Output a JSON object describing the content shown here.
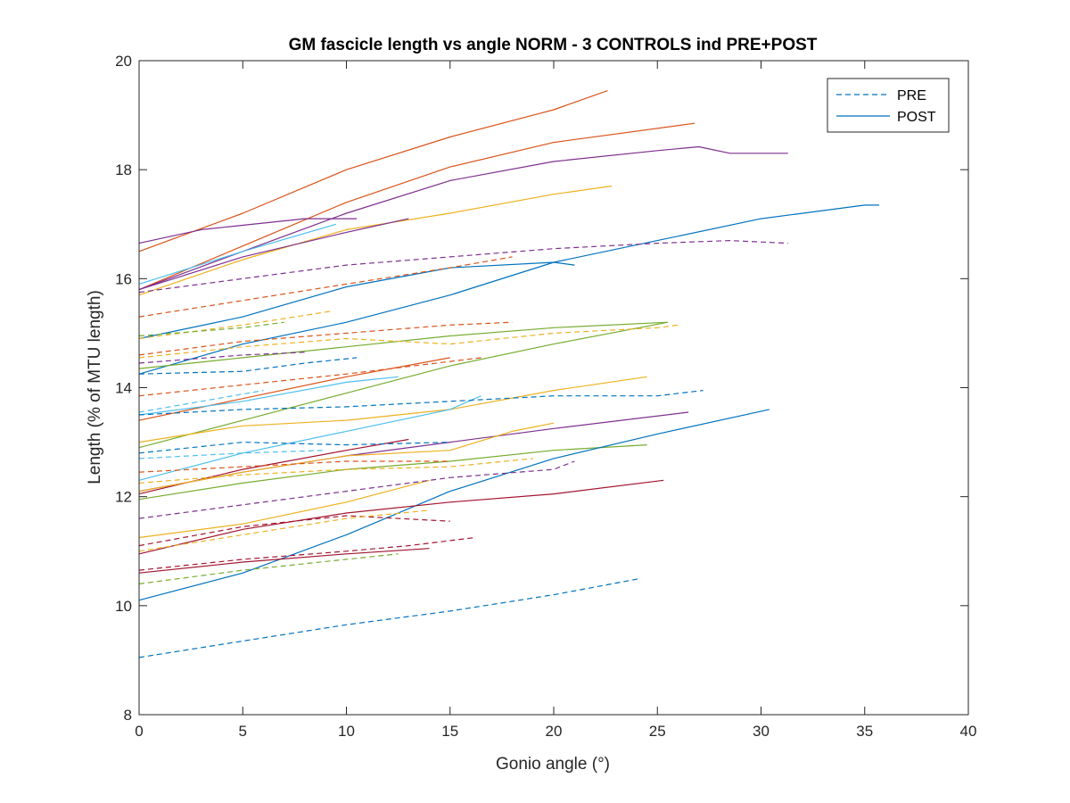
{
  "chart_data": {
    "type": "line",
    "title": "GM fascicle length vs angle NORM - 3 CONTROLS ind PRE+POST",
    "xlabel": "Gonio angle (°)",
    "ylabel": "Length (% of MTU length)",
    "xlim": [
      0,
      40
    ],
    "ylim": [
      8,
      20
    ],
    "xticks": [
      0,
      5,
      10,
      15,
      20,
      25,
      30,
      35,
      40
    ],
    "yticks": [
      8,
      10,
      12,
      14,
      16,
      18,
      20
    ],
    "grid": false,
    "legend": {
      "location": "top-right",
      "entries": [
        {
          "label": "PRE",
          "style": "dashed",
          "color": "#0072BD"
        },
        {
          "label": "POST",
          "style": "solid",
          "color": "#0072BD"
        }
      ]
    },
    "series": [
      {
        "style": "solid",
        "color": "#D95319",
        "points": [
          [
            0,
            16.5
          ],
          [
            5,
            17.2
          ],
          [
            10,
            18.0
          ],
          [
            15,
            18.6
          ],
          [
            20,
            19.1
          ],
          [
            22.6,
            19.45
          ]
        ]
      },
      {
        "style": "solid",
        "color": "#D95319",
        "points": [
          [
            0,
            15.8
          ],
          [
            5,
            16.6
          ],
          [
            10,
            17.4
          ],
          [
            15,
            18.05
          ],
          [
            20,
            18.5
          ],
          [
            26.8,
            18.85
          ]
        ]
      },
      {
        "style": "solid",
        "color": "#7E2F8E",
        "points": [
          [
            0,
            15.8
          ],
          [
            5,
            16.5
          ],
          [
            10,
            17.2
          ],
          [
            15,
            17.8
          ],
          [
            20,
            18.15
          ],
          [
            25,
            18.35
          ],
          [
            27,
            18.42
          ],
          [
            28.5,
            18.3
          ],
          [
            31.3,
            18.3
          ]
        ]
      },
      {
        "style": "solid",
        "color": "#EDB120",
        "points": [
          [
            0,
            15.7
          ],
          [
            5,
            16.35
          ],
          [
            10,
            16.9
          ],
          [
            15,
            17.2
          ],
          [
            20,
            17.55
          ],
          [
            22.8,
            17.7
          ]
        ]
      },
      {
        "style": "solid",
        "color": "#0072BD",
        "points": [
          [
            0,
            14.9
          ],
          [
            5,
            15.3
          ],
          [
            10,
            15.85
          ],
          [
            15,
            16.2
          ],
          [
            20,
            16.3
          ],
          [
            25,
            16.7
          ],
          [
            30,
            17.1
          ],
          [
            35,
            17.35
          ],
          [
            35.7,
            17.35
          ]
        ]
      },
      {
        "style": "solid",
        "color": "#7E2F8E",
        "points": [
          [
            0,
            16.65
          ],
          [
            3,
            16.9
          ],
          [
            8,
            17.1
          ],
          [
            10.5,
            17.1
          ]
        ]
      },
      {
        "style": "solid",
        "color": "#7E2F8E",
        "points": [
          [
            0,
            15.8
          ],
          [
            5,
            16.4
          ],
          [
            10,
            16.85
          ],
          [
            13,
            17.1
          ]
        ]
      },
      {
        "style": "solid",
        "color": "#4DBEEE",
        "points": [
          [
            0,
            15.9
          ],
          [
            5,
            16.5
          ],
          [
            9.5,
            17.0
          ]
        ]
      },
      {
        "style": "solid",
        "color": "#0072BD",
        "points": [
          [
            0,
            14.25
          ],
          [
            5,
            14.8
          ],
          [
            10,
            15.2
          ],
          [
            15,
            15.7
          ],
          [
            20,
            16.3
          ],
          [
            21,
            16.25
          ]
        ]
      },
      {
        "style": "solid",
        "color": "#77AC30",
        "points": [
          [
            0,
            14.35
          ],
          [
            5,
            14.55
          ],
          [
            10,
            14.75
          ],
          [
            15,
            14.95
          ],
          [
            20,
            15.1
          ],
          [
            25.5,
            15.2
          ]
        ]
      },
      {
        "style": "solid",
        "color": "#77AC30",
        "points": [
          [
            0,
            12.9
          ],
          [
            5,
            13.4
          ],
          [
            10,
            13.9
          ],
          [
            15,
            14.4
          ],
          [
            20,
            14.8
          ],
          [
            25.5,
            15.2
          ]
        ]
      },
      {
        "style": "solid",
        "color": "#EDB120",
        "points": [
          [
            0,
            13.0
          ],
          [
            5,
            13.3
          ],
          [
            10,
            13.4
          ],
          [
            15,
            13.6
          ],
          [
            20,
            13.95
          ],
          [
            24.5,
            14.2
          ]
        ]
      },
      {
        "style": "solid",
        "color": "#4DBEEE",
        "points": [
          [
            0,
            12.3
          ],
          [
            5,
            12.8
          ],
          [
            10,
            13.2
          ],
          [
            15,
            13.6
          ],
          [
            16.5,
            13.85
          ]
        ]
      },
      {
        "style": "solid",
        "color": "#D95319",
        "points": [
          [
            0,
            13.4
          ],
          [
            5,
            13.8
          ],
          [
            10,
            14.2
          ],
          [
            15,
            14.55
          ]
        ]
      },
      {
        "style": "solid",
        "color": "#4DBEEE",
        "points": [
          [
            0,
            13.5
          ],
          [
            5,
            13.75
          ],
          [
            10,
            14.1
          ],
          [
            12.5,
            14.2
          ]
        ]
      },
      {
        "style": "solid",
        "color": "#7E2F8E",
        "points": [
          [
            0,
            12.1
          ],
          [
            5,
            12.45
          ],
          [
            10,
            12.75
          ],
          [
            15,
            13.0
          ],
          [
            20,
            13.25
          ],
          [
            26.5,
            13.55
          ]
        ]
      },
      {
        "style": "solid",
        "color": "#A2142F",
        "points": [
          [
            0,
            12.05
          ],
          [
            5,
            12.5
          ],
          [
            10,
            12.85
          ],
          [
            13,
            13.05
          ]
        ]
      },
      {
        "style": "solid",
        "color": "#EDB120",
        "points": [
          [
            0,
            12.1
          ],
          [
            5,
            12.45
          ],
          [
            10,
            12.75
          ],
          [
            15,
            12.85
          ],
          [
            18,
            13.2
          ],
          [
            20,
            13.35
          ]
        ]
      },
      {
        "style": "solid",
        "color": "#77AC30",
        "points": [
          [
            0,
            11.95
          ],
          [
            5,
            12.25
          ],
          [
            10,
            12.5
          ],
          [
            15,
            12.65
          ],
          [
            20,
            12.85
          ],
          [
            24.5,
            12.95
          ]
        ]
      },
      {
        "style": "solid",
        "color": "#0072BD",
        "points": [
          [
            0,
            10.1
          ],
          [
            5,
            10.6
          ],
          [
            10,
            11.3
          ],
          [
            15,
            12.1
          ],
          [
            20,
            12.7
          ],
          [
            25,
            13.15
          ],
          [
            30.4,
            13.6
          ]
        ]
      },
      {
        "style": "solid",
        "color": "#A2142F",
        "points": [
          [
            0,
            10.95
          ],
          [
            5,
            11.4
          ],
          [
            10,
            11.7
          ],
          [
            15,
            11.9
          ],
          [
            20,
            12.05
          ],
          [
            25.3,
            12.3
          ]
        ]
      },
      {
        "style": "solid",
        "color": "#EDB120",
        "points": [
          [
            0,
            11.25
          ],
          [
            5,
            11.5
          ],
          [
            10,
            11.9
          ],
          [
            14,
            12.3
          ]
        ]
      },
      {
        "style": "solid",
        "color": "#A2142F",
        "points": [
          [
            0,
            10.6
          ],
          [
            5,
            10.8
          ],
          [
            10,
            10.95
          ],
          [
            14,
            11.05
          ]
        ]
      },
      {
        "style": "dashed",
        "color": "#7E2F8E",
        "points": [
          [
            0,
            15.75
          ],
          [
            5,
            16.0
          ],
          [
            10,
            16.25
          ],
          [
            15,
            16.4
          ],
          [
            20,
            16.55
          ],
          [
            25,
            16.65
          ],
          [
            28.5,
            16.7
          ],
          [
            31.3,
            16.65
          ]
        ]
      },
      {
        "style": "dashed",
        "color": "#D95319",
        "points": [
          [
            0,
            15.3
          ],
          [
            5,
            15.6
          ],
          [
            10,
            15.9
          ],
          [
            15,
            16.2
          ],
          [
            18,
            16.4
          ]
        ]
      },
      {
        "style": "dashed",
        "color": "#EDB120",
        "points": [
          [
            0,
            14.9
          ],
          [
            5,
            15.15
          ],
          [
            9.2,
            15.4
          ]
        ]
      },
      {
        "style": "dashed",
        "color": "#77AC30",
        "points": [
          [
            0,
            14.95
          ],
          [
            5,
            15.1
          ],
          [
            7,
            15.2
          ]
        ]
      },
      {
        "style": "dashed",
        "color": "#D95319",
        "points": [
          [
            0,
            14.6
          ],
          [
            5,
            14.85
          ],
          [
            10,
            15.0
          ],
          [
            15,
            15.15
          ],
          [
            18,
            15.2
          ]
        ]
      },
      {
        "style": "dashed",
        "color": "#EDB120",
        "points": [
          [
            0,
            14.55
          ],
          [
            5,
            14.75
          ],
          [
            10,
            14.9
          ],
          [
            15,
            14.8
          ],
          [
            20,
            15.0
          ],
          [
            25,
            15.1
          ],
          [
            26,
            15.15
          ]
        ]
      },
      {
        "style": "dashed",
        "color": "#7E2F8E",
        "points": [
          [
            0,
            14.45
          ],
          [
            5,
            14.6
          ],
          [
            8,
            14.65
          ]
        ]
      },
      {
        "style": "dashed",
        "color": "#0072BD",
        "points": [
          [
            0,
            14.25
          ],
          [
            5,
            14.3
          ],
          [
            8,
            14.45
          ],
          [
            10.5,
            14.55
          ]
        ]
      },
      {
        "style": "dashed",
        "color": "#D95319",
        "points": [
          [
            0,
            13.85
          ],
          [
            5,
            14.05
          ],
          [
            10,
            14.25
          ],
          [
            16.5,
            14.55
          ]
        ]
      },
      {
        "style": "dashed",
        "color": "#4DBEEE",
        "points": [
          [
            0,
            13.55
          ],
          [
            3,
            13.75
          ],
          [
            6,
            13.95
          ]
        ]
      },
      {
        "style": "dashed",
        "color": "#0072BD",
        "points": [
          [
            0,
            13.5
          ],
          [
            5,
            13.6
          ],
          [
            10,
            13.65
          ],
          [
            15,
            13.75
          ],
          [
            20,
            13.85
          ],
          [
            25,
            13.85
          ],
          [
            27.2,
            13.95
          ]
        ]
      },
      {
        "style": "dashed",
        "color": "#0072BD",
        "points": [
          [
            0,
            12.8
          ],
          [
            5,
            13.0
          ],
          [
            10,
            12.95
          ],
          [
            15,
            13.0
          ]
        ]
      },
      {
        "style": "dashed",
        "color": "#4DBEEE",
        "points": [
          [
            0,
            12.7
          ],
          [
            5,
            12.8
          ],
          [
            9,
            12.85
          ]
        ]
      },
      {
        "style": "dashed",
        "color": "#D95319",
        "points": [
          [
            0,
            12.45
          ],
          [
            5,
            12.55
          ],
          [
            10,
            12.65
          ],
          [
            15,
            12.65
          ]
        ]
      },
      {
        "style": "dashed",
        "color": "#EDB120",
        "points": [
          [
            0,
            12.25
          ],
          [
            5,
            12.4
          ],
          [
            10,
            12.5
          ],
          [
            15,
            12.55
          ],
          [
            19,
            12.7
          ]
        ]
      },
      {
        "style": "dashed",
        "color": "#7E2F8E",
        "points": [
          [
            0,
            11.6
          ],
          [
            5,
            11.85
          ],
          [
            10,
            12.1
          ],
          [
            15,
            12.35
          ],
          [
            20,
            12.5
          ],
          [
            21,
            12.65
          ]
        ]
      },
      {
        "style": "dashed",
        "color": "#A2142F",
        "points": [
          [
            0,
            11.1
          ],
          [
            5,
            11.45
          ],
          [
            10,
            11.65
          ],
          [
            15,
            11.55
          ]
        ]
      },
      {
        "style": "dashed",
        "color": "#EDB120",
        "points": [
          [
            0,
            11.0
          ],
          [
            5,
            11.3
          ],
          [
            10,
            11.6
          ],
          [
            14,
            11.75
          ]
        ]
      },
      {
        "style": "dashed",
        "color": "#A2142F",
        "points": [
          [
            0,
            10.65
          ],
          [
            5,
            10.85
          ],
          [
            10,
            11.0
          ],
          [
            13,
            11.1
          ],
          [
            16.2,
            11.25
          ]
        ]
      },
      {
        "style": "dashed",
        "color": "#77AC30",
        "points": [
          [
            0,
            10.4
          ],
          [
            5,
            10.65
          ],
          [
            10,
            10.85
          ],
          [
            12.5,
            10.95
          ]
        ]
      },
      {
        "style": "dashed",
        "color": "#0072BD",
        "points": [
          [
            0,
            9.05
          ],
          [
            5,
            9.35
          ],
          [
            10,
            9.65
          ],
          [
            15,
            9.9
          ],
          [
            20,
            10.2
          ],
          [
            24.2,
            10.5
          ]
        ]
      }
    ]
  }
}
